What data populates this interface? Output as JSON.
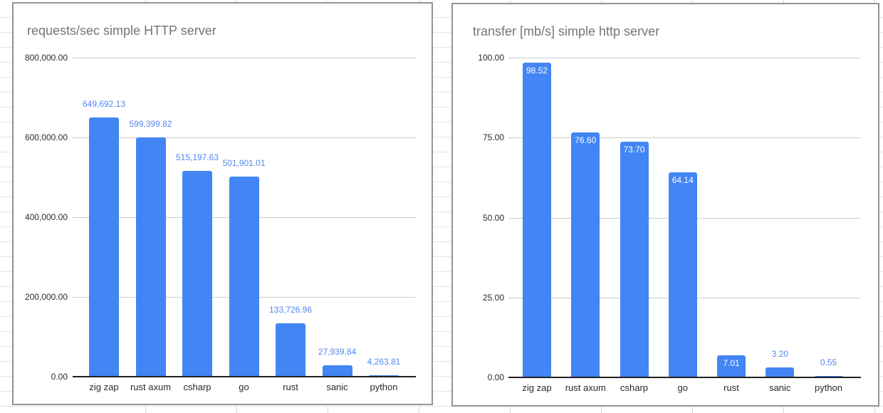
{
  "chart_data": [
    {
      "type": "bar",
      "title": "requests/sec simple HTTP server",
      "categories": [
        "zig zap",
        "rust axum",
        "csharp",
        "go",
        "rust",
        "sanic",
        "python"
      ],
      "values": [
        649692.13,
        599399.82,
        515197.63,
        501901.01,
        133726.96,
        27939.84,
        4263.81
      ],
      "value_labels": [
        "649,692.13",
        "599,399.82",
        "515,197.63",
        "501,901.01",
        "133,726.96",
        "27,939.84",
        "4,263.81"
      ],
      "xlabel": "",
      "ylabel": "",
      "ylim": [
        0,
        800000
      ],
      "yticks": [
        {
          "value": 0,
          "label": "0.00"
        },
        {
          "value": 200000,
          "label": "200,000.00"
        },
        {
          "value": 400000,
          "label": "400,000.00"
        },
        {
          "value": 600000,
          "label": "600,000.00"
        },
        {
          "value": 800000,
          "label": "800,000.00"
        }
      ],
      "grid": true,
      "legend": "none",
      "label_placement": "outside",
      "colors": {
        "bar": "#4285f4",
        "data_label_outside": "#5487ef",
        "data_label_inside": "#ffffff",
        "title": "#757575",
        "axis_text": "#2b2b2b",
        "gridline": "#cccccc",
        "baseline": "#212121"
      }
    },
    {
      "type": "bar",
      "title": "transfer [mb/s] simple http server",
      "categories": [
        "zig zap",
        "rust axum",
        "csharp",
        "go",
        "rust",
        "sanic",
        "python"
      ],
      "values": [
        98.52,
        76.6,
        73.7,
        64.14,
        7.01,
        3.2,
        0.55
      ],
      "value_labels": [
        "98.52",
        "76.60",
        "73.70",
        "64.14",
        "7.01",
        "3.20",
        "0.55"
      ],
      "xlabel": "",
      "ylabel": "",
      "ylim": [
        0,
        100
      ],
      "yticks": [
        {
          "value": 0,
          "label": "0.00"
        },
        {
          "value": 25,
          "label": "25.00"
        },
        {
          "value": 50,
          "label": "50.00"
        },
        {
          "value": 75,
          "label": "75.00"
        },
        {
          "value": 100,
          "label": "100.00"
        }
      ],
      "grid": true,
      "legend": "none",
      "label_placement": "inside-auto",
      "colors": {
        "bar": "#4285f4",
        "data_label_outside": "#5487ef",
        "data_label_inside": "#ffffff",
        "title": "#757575",
        "axis_text": "#2b2b2b",
        "gridline": "#cccccc",
        "baseline": "#212121"
      }
    }
  ]
}
